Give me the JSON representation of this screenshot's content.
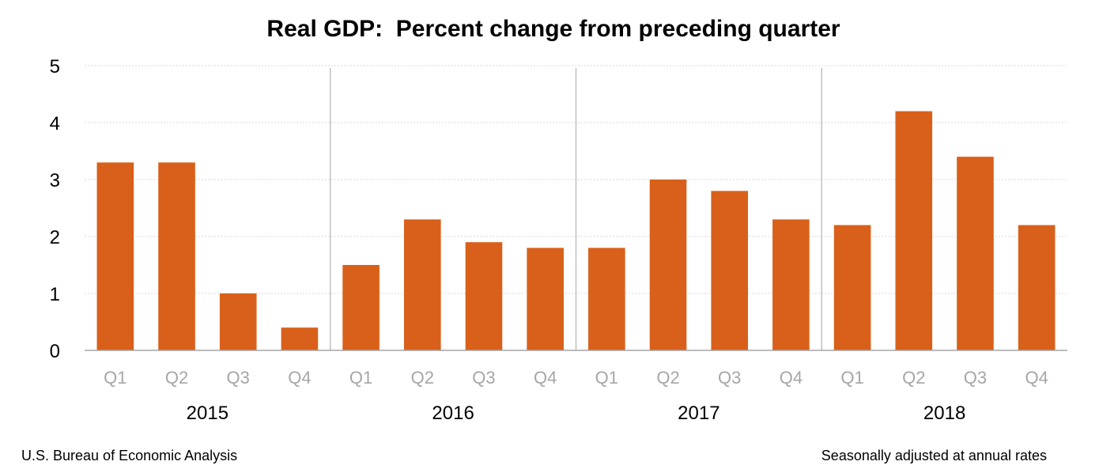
{
  "chart_data": {
    "type": "bar",
    "title": "Real GDP:  Percent change from preceding quarter",
    "xlabel": "",
    "ylabel": "",
    "categories": [
      "Q1",
      "Q2",
      "Q3",
      "Q4",
      "Q1",
      "Q2",
      "Q3",
      "Q4",
      "Q1",
      "Q2",
      "Q3",
      "Q4",
      "Q1",
      "Q2",
      "Q3",
      "Q4"
    ],
    "groups": [
      {
        "label": "2015",
        "count": 4
      },
      {
        "label": "2016",
        "count": 4
      },
      {
        "label": "2017",
        "count": 4
      },
      {
        "label": "2018",
        "count": 4
      }
    ],
    "series": [
      {
        "values": [
          3.3,
          3.3,
          1.0,
          0.4,
          1.5,
          2.3,
          1.9,
          1.8,
          1.8,
          3.0,
          2.8,
          2.3,
          2.2,
          4.2,
          3.4,
          2.2
        ]
      }
    ],
    "ylim": [
      0,
      5
    ],
    "yticks": [
      "0",
      "1",
      "2",
      "3",
      "4",
      "5"
    ],
    "grid": true,
    "colors": {
      "bar": "#d9601a",
      "grid": "#d9d9d9",
      "separator": "#bfbfbf",
      "axis": "#a6a6a6",
      "quarter_label": "#a6a6a6"
    }
  },
  "footer": {
    "source": "U.S. Bureau of Economic Analysis",
    "note": "Seasonally adjusted at annual rates"
  }
}
